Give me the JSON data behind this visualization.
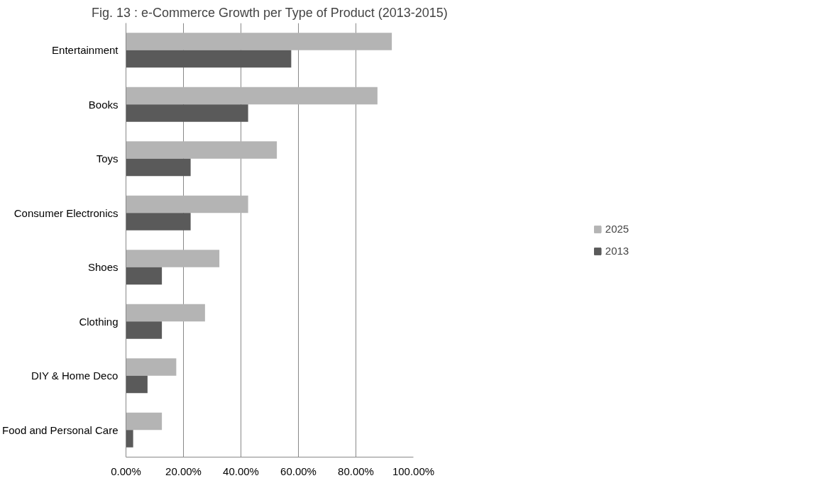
{
  "chart_data": {
    "type": "bar",
    "orientation": "horizontal",
    "title": "Fig. 13 : e-Commerce Growth per Type of Product (2013-2015)",
    "categories": [
      "Entertainment",
      "Books",
      "Toys",
      "Consumer Electronics",
      "Shoes",
      "Clothing",
      "DIY & Home Deco",
      "Food and Personal Care"
    ],
    "series": [
      {
        "name": "2025",
        "color": "#b4b4b4",
        "values": [
          92.5,
          87.5,
          52.5,
          42.5,
          32.5,
          27.5,
          17.5,
          12.5
        ]
      },
      {
        "name": "2013",
        "color": "#5a5a5a",
        "values": [
          57.5,
          42.5,
          22.5,
          22.5,
          12.5,
          12.5,
          7.5,
          2.5
        ]
      }
    ],
    "xlim": [
      0,
      100
    ],
    "xticks": [
      {
        "value": 0,
        "label": "0.00%"
      },
      {
        "value": 20,
        "label": "20.00%"
      },
      {
        "value": 40,
        "label": "40.00%"
      },
      {
        "value": 60,
        "label": "60.00%"
      },
      {
        "value": 80,
        "label": "80.00%"
      },
      {
        "value": 100,
        "label": "100.00%"
      }
    ],
    "grid": "x",
    "legend": "right"
  }
}
